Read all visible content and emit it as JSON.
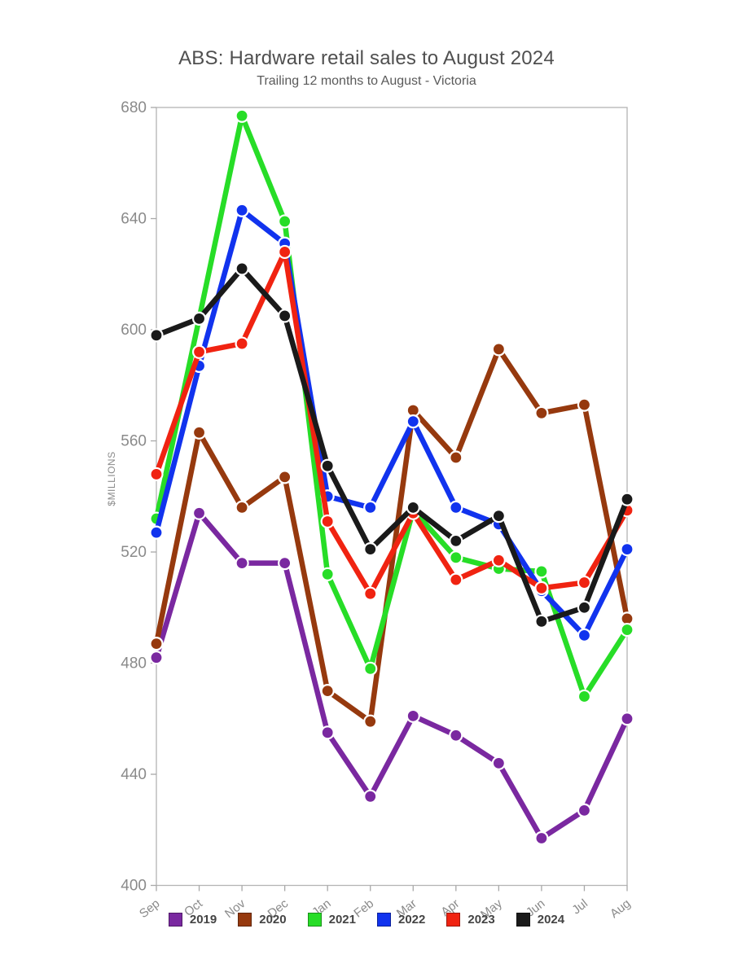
{
  "header": {
    "title": "ABS: Hardware retail sales to August 2024",
    "subtitle": "Trailing 12 months to August - Victoria"
  },
  "chart_data": {
    "type": "line",
    "title": "ABS: Hardware retail sales to August 2024",
    "subtitle": "Trailing 12 months to August - Victoria",
    "xlabel": "",
    "ylabel": "$MILLIONS",
    "categories": [
      "Sep",
      "Oct",
      "Nov",
      "Dec",
      "Jan",
      "Feb",
      "Mar",
      "Apr",
      "May",
      "Jun",
      "Jul",
      "Aug"
    ],
    "ylim": [
      400,
      680
    ],
    "yticks": [
      400,
      440,
      480,
      520,
      560,
      600,
      640,
      680
    ],
    "grid": false,
    "legend_position": "bottom",
    "marker": "circle",
    "series": [
      {
        "name": "2019",
        "color": "#7A28A0",
        "values": [
          482,
          534,
          516,
          516,
          455,
          432,
          461,
          454,
          444,
          417,
          427,
          460
        ]
      },
      {
        "name": "2020",
        "color": "#96390E",
        "values": [
          487,
          563,
          536,
          547,
          470,
          459,
          571,
          554,
          593,
          570,
          573,
          496
        ]
      },
      {
        "name": "2021",
        "color": "#27DD27",
        "values": [
          532,
          604,
          677,
          639,
          512,
          478,
          535,
          518,
          514,
          513,
          468,
          492
        ]
      },
      {
        "name": "2022",
        "color": "#1133EE",
        "values": [
          527,
          587,
          643,
          631,
          540,
          536,
          567,
          536,
          530,
          506,
          490,
          521
        ]
      },
      {
        "name": "2023",
        "color": "#F02311",
        "values": [
          548,
          592,
          595,
          628,
          531,
          505,
          534,
          510,
          517,
          507,
          509,
          535
        ]
      },
      {
        "name": "2024",
        "color": "#1A1A1A",
        "values": [
          598,
          604,
          622,
          605,
          551,
          521,
          536,
          524,
          533,
          495,
          500,
          539
        ]
      }
    ],
    "colors": {
      "axis_line": "#b4b4b4",
      "tick_mark": "#a8a8a8",
      "tick_label": "#8a8a8a",
      "axis_title": "#8a8a8a",
      "chart_title": "#4f4f4f",
      "legend_label": "#444444",
      "background": "#ffffff"
    }
  }
}
